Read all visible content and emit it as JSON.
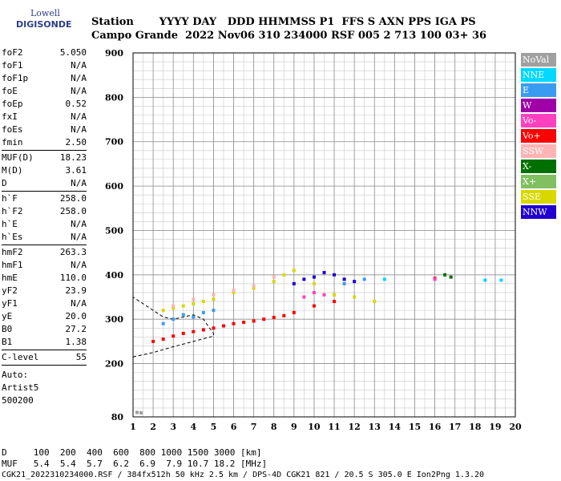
{
  "logo": {
    "line1": "Lowell",
    "line2": "DIGISONDE"
  },
  "header": {
    "line1": "Station       YYYY DAY   DDD HHMMSS P1  FFS S AXN PPS IGA PS",
    "line2": "Campo Grande  2022 Nov06 310 234000 RSF 005 2 713 100 03+ 36"
  },
  "params": {
    "group1": [
      {
        "name": "foF2",
        "value": "5.050"
      },
      {
        "name": "foF1",
        "value": "N/A"
      },
      {
        "name": "foF1p",
        "value": "N/A"
      },
      {
        "name": "foE",
        "value": "N/A"
      },
      {
        "name": "foEp",
        "value": "0.52"
      },
      {
        "name": "fxI",
        "value": "N/A"
      },
      {
        "name": "foEs",
        "value": "N/A"
      },
      {
        "name": "fmin",
        "value": "2.50"
      }
    ],
    "group2": [
      {
        "name": "MUF(D)",
        "value": "18.23"
      },
      {
        "name": "M(D)",
        "value": "3.61"
      },
      {
        "name": "D",
        "value": "N/A"
      }
    ],
    "group3": [
      {
        "name": "h`F",
        "value": "258.0"
      },
      {
        "name": "h`F2",
        "value": "258.0"
      },
      {
        "name": "h`E",
        "value": "N/A"
      },
      {
        "name": "h`Es",
        "value": "N/A"
      }
    ],
    "group4": [
      {
        "name": "hmF2",
        "value": "263.3"
      },
      {
        "name": "hmF1",
        "value": "N/A"
      },
      {
        "name": "hmE",
        "value": "110.0"
      },
      {
        "name": "yF2",
        "value": "23.9"
      },
      {
        "name": "yF1",
        "value": "N/A"
      },
      {
        "name": "yE",
        "value": "20.0"
      },
      {
        "name": "B0",
        "value": "27.2"
      },
      {
        "name": "B1",
        "value": "1.38"
      }
    ],
    "group5": [
      {
        "name": "C-level",
        "value": "55"
      }
    ],
    "auto": [
      "Auto:",
      "Artist5",
      "500200"
    ]
  },
  "legend": [
    {
      "label": "NoVal",
      "color": "#a0a0a0"
    },
    {
      "label": "NNE",
      "color": "#00d8ff"
    },
    {
      "label": "E",
      "color": "#3a9cf0"
    },
    {
      "label": "W",
      "color": "#a000a8"
    },
    {
      "label": "Vo-",
      "color": "#ff40c0"
    },
    {
      "label": "Vo+",
      "color": "#ff0000"
    },
    {
      "label": "SSW",
      "color": "#ffb4b4"
    },
    {
      "label": "X-",
      "color": "#007000"
    },
    {
      "label": "X+",
      "color": "#80c060"
    },
    {
      "label": "SSE",
      "color": "#d8d800"
    },
    {
      "label": "NNW",
      "color": "#2000d0"
    }
  ],
  "footer": {
    "line1": "D     100  200  400  600  800 1000 1500 3000 [km]",
    "line2": "MUF   5.4  5.4  5.7  6.2  6.9  7.9 10.7 18.2 [MHz]",
    "line3": "CGK21_2022310234000.RSF / 384fx512h 50 kHz 2.5 km / DPS-4D CGK21 821 / 20.5 S 305.0 E Ion2Png 1.3.20"
  },
  "chart_data": {
    "type": "scatter",
    "xlim": [
      1,
      20
    ],
    "ylim": [
      80,
      900
    ],
    "x_ticks": [
      1,
      2,
      3,
      4,
      5,
      6,
      7,
      8,
      9,
      10,
      11,
      12,
      13,
      14,
      15,
      16,
      17,
      18,
      19,
      20
    ],
    "y_ticks": [
      80,
      200,
      300,
      400,
      500,
      600,
      700,
      800,
      900
    ],
    "x_minor_step": 0.5,
    "y_minor_step": 20,
    "grid": true,
    "series": [
      {
        "name": "Vo+",
        "color": "#ff0000",
        "points": [
          [
            2.0,
            250
          ],
          [
            2.5,
            255
          ],
          [
            3.0,
            262
          ],
          [
            3.5,
            268
          ],
          [
            4.0,
            272
          ],
          [
            4.5,
            276
          ],
          [
            5.0,
            280
          ],
          [
            5.5,
            285
          ],
          [
            6.0,
            290
          ],
          [
            6.5,
            293
          ],
          [
            7.0,
            296
          ],
          [
            7.5,
            300
          ],
          [
            8.0,
            304
          ],
          [
            8.5,
            308
          ],
          [
            9.0,
            315
          ],
          [
            10.0,
            330
          ],
          [
            11.0,
            340
          ],
          [
            16.0,
            392
          ]
        ]
      },
      {
        "name": "SSE",
        "color": "#d8d800",
        "points": [
          [
            2.5,
            320
          ],
          [
            3.0,
            325
          ],
          [
            3.5,
            330
          ],
          [
            4.0,
            335
          ],
          [
            4.5,
            340
          ],
          [
            5.0,
            345
          ],
          [
            6.0,
            360
          ],
          [
            7.0,
            370
          ],
          [
            8.0,
            385
          ],
          [
            8.5,
            400
          ],
          [
            9.0,
            410
          ],
          [
            10.0,
            380
          ],
          [
            11.0,
            355
          ],
          [
            12.0,
            350
          ],
          [
            13.0,
            340
          ]
        ]
      },
      {
        "name": "NNW",
        "color": "#2000d0",
        "points": [
          [
            9.0,
            380
          ],
          [
            9.5,
            390
          ],
          [
            10.0,
            395
          ],
          [
            10.5,
            405
          ],
          [
            11.0,
            400
          ],
          [
            11.5,
            390
          ],
          [
            12.0,
            385
          ]
        ]
      },
      {
        "name": "E",
        "color": "#3a9cf0",
        "points": [
          [
            2.5,
            290
          ],
          [
            3.0,
            300
          ],
          [
            3.5,
            310
          ],
          [
            4.0,
            305
          ],
          [
            4.5,
            315
          ],
          [
            5.0,
            320
          ],
          [
            11.5,
            380
          ],
          [
            12.5,
            390
          ]
        ]
      },
      {
        "name": "SSW",
        "color": "#ffb4b4",
        "points": [
          [
            3.0,
            330
          ],
          [
            4.0,
            345
          ],
          [
            5.0,
            355
          ],
          [
            6.0,
            365
          ],
          [
            7.0,
            375
          ],
          [
            8.0,
            395
          ]
        ]
      },
      {
        "name": "Vo-",
        "color": "#ff40c0",
        "points": [
          [
            9.5,
            350
          ],
          [
            10.0,
            360
          ],
          [
            10.5,
            355
          ],
          [
            16.0,
            390
          ]
        ]
      },
      {
        "name": "X-",
        "color": "#007000",
        "points": [
          [
            16.5,
            400
          ],
          [
            16.8,
            395
          ]
        ]
      },
      {
        "name": "NNE",
        "color": "#00d8ff",
        "points": [
          [
            13.5,
            390
          ],
          [
            18.5,
            388
          ],
          [
            19.3,
            388
          ]
        ]
      },
      {
        "name": "NoVal",
        "color": "#a0a0a0",
        "points": [
          [
            1.2,
            90
          ],
          [
            1.4,
            89
          ]
        ]
      }
    ],
    "profile_curve": [
      [
        1.0,
        215
      ],
      [
        2.0,
        225
      ],
      [
        3.0,
        238
      ],
      [
        4.0,
        250
      ],
      [
        5.0,
        262
      ],
      [
        5.0,
        268
      ],
      [
        4.8,
        280
      ],
      [
        4.5,
        300
      ],
      [
        4.0,
        310
      ],
      [
        3.5,
        305
      ],
      [
        3.0,
        300
      ],
      [
        2.5,
        305
      ],
      [
        2.0,
        320
      ],
      [
        1.5,
        335
      ],
      [
        1.0,
        350
      ]
    ]
  }
}
